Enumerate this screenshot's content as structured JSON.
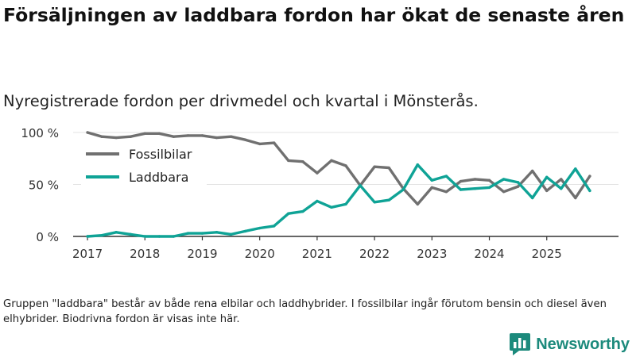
{
  "title": "Försäljningen av laddbara fordon har ökat de senaste åren",
  "subtitle": "Nyregistrerade fordon per drivmedel och kvartal i Mönsterås.",
  "footnote": "Gruppen \"laddbara\" består av både rena elbilar och laddhybrider. I fossilbilar ingår förutom bensin och diesel även elhybrider. Biodrivna fordon är visas inte här.",
  "brand": {
    "name": "Newsworthy",
    "icon": "bar-chart-logo-icon"
  },
  "colors": {
    "fossil": "#707070",
    "laddbara": "#0fa396",
    "grid": "#e3e3e3",
    "axis": "#333333",
    "brand": "#1c8a7c"
  },
  "chart_data": {
    "type": "line",
    "title": "Försäljningen av laddbara fordon har ökat de senaste åren",
    "xlabel": "",
    "ylabel": "",
    "x_start": 2017,
    "x_step": 0.25,
    "xlim": [
      2016.75,
      2026.25
    ],
    "ylim": [
      0,
      100
    ],
    "y_ticks": [
      {
        "value": 0,
        "label": "0 %"
      },
      {
        "value": 50,
        "label": "50 %"
      },
      {
        "value": 100,
        "label": "100 %"
      }
    ],
    "x_ticks": [
      {
        "value": 2017,
        "label": "2017"
      },
      {
        "value": 2018,
        "label": "2018"
      },
      {
        "value": 2019,
        "label": "2019"
      },
      {
        "value": 2020,
        "label": "2020"
      },
      {
        "value": 2021,
        "label": "2021"
      },
      {
        "value": 2022,
        "label": "2022"
      },
      {
        "value": 2023,
        "label": "2023"
      },
      {
        "value": 2024,
        "label": "2024"
      },
      {
        "value": 2025,
        "label": "2025"
      }
    ],
    "legend": "top-left",
    "series": [
      {
        "name": "Fossilbilar",
        "key": "fossil",
        "values": [
          100,
          96,
          95,
          96,
          99,
          99,
          96,
          97,
          97,
          95,
          96,
          93,
          89,
          90,
          73,
          72,
          61,
          73,
          68,
          49,
          67,
          66,
          46,
          31,
          47,
          43,
          53,
          55,
          54,
          43,
          48,
          63,
          44,
          55,
          37,
          58
        ]
      },
      {
        "name": "Laddbara",
        "key": "laddbara",
        "values": [
          0,
          1,
          4,
          2,
          0,
          0,
          0,
          3,
          3,
          4,
          2,
          5,
          8,
          10,
          22,
          24,
          34,
          28,
          31,
          49,
          33,
          35,
          45,
          69,
          54,
          58,
          45,
          46,
          47,
          55,
          52,
          37,
          57,
          46,
          65,
          44
        ]
      }
    ]
  }
}
